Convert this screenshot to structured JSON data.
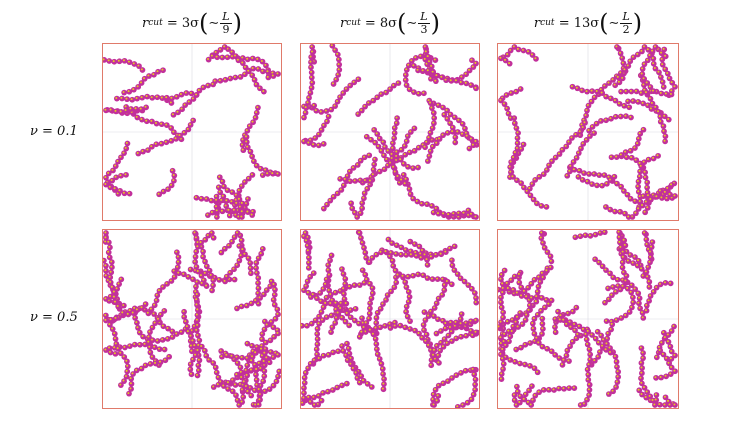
{
  "columns": [
    {
      "r_sym": "r",
      "r_sub": "cut",
      "eq": "= 3σ",
      "tilde": "∼",
      "num": "L",
      "den": "9"
    },
    {
      "r_sym": "r",
      "r_sub": "cut",
      "eq": "= 8σ",
      "tilde": "∼",
      "num": "L",
      "den": "3"
    },
    {
      "r_sym": "r",
      "r_sub": "cut",
      "eq": "= 13σ",
      "tilde": "∼",
      "num": "L",
      "den": "2"
    }
  ],
  "rows": [
    {
      "label": "ν = 0.1"
    },
    {
      "label": "ν = 0.5"
    }
  ],
  "colors": {
    "bead": "#c2309b",
    "bead_core": "#e8c81e",
    "bond": "#7d1d6e",
    "frame": "#e07a6a",
    "grid": "#d9d9e3"
  }
}
